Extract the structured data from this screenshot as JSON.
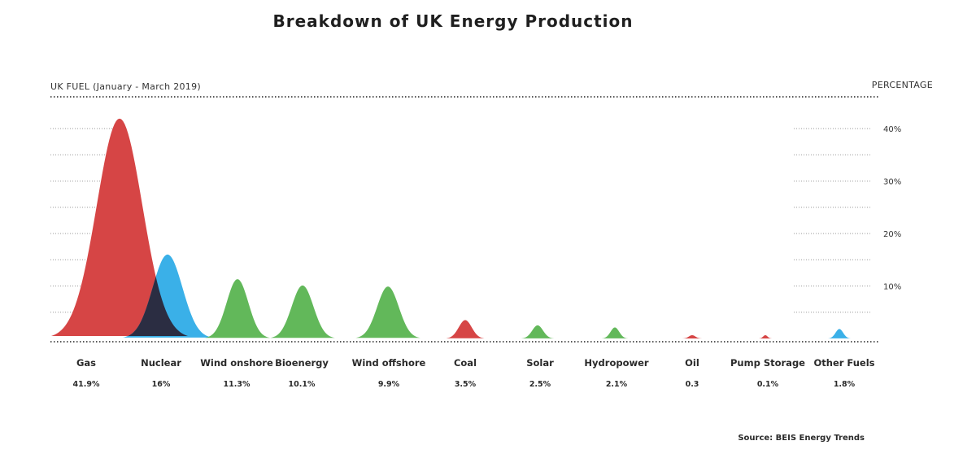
{
  "chart_data": {
    "type": "area",
    "title": "Breakdown of UK Energy Production",
    "subtitle": "UK FUEL (January - March 2019)",
    "ylabel": "PERCENTAGE",
    "source": "Source: BEIS Energy Trends",
    "ylim": [
      0,
      45
    ],
    "yticks": [
      10,
      20,
      30,
      40
    ],
    "ytick_labels": [
      "10%",
      "20%",
      "30%",
      "40%"
    ],
    "grid": true,
    "categories": [
      "Gas",
      "Nuclear",
      "Wind onshore",
      "Bioenergy",
      "Wind offshore",
      "Coal",
      "Solar",
      "Hydropower",
      "Oil",
      "Pump Storage",
      "Other Fuels"
    ],
    "value_labels": [
      "41.9%",
      "16%",
      "11.3%",
      "10.1%",
      "9.9%",
      "3.5%",
      "2.5%",
      "2.1%",
      "0.3",
      "0.1%",
      "1.8%"
    ],
    "values": [
      41.9,
      16,
      11.3,
      10.1,
      9.9,
      3.5,
      2.5,
      2.1,
      0.3,
      0.1,
      1.8
    ],
    "colors": [
      "#d64545",
      "#3ab0e8",
      "#62b85a",
      "#62b85a",
      "#62b85a",
      "#d64545",
      "#62b85a",
      "#62b85a",
      "#d64545",
      "#d64545",
      "#3ab0e8"
    ],
    "overlap_color": "#2b2d42"
  }
}
